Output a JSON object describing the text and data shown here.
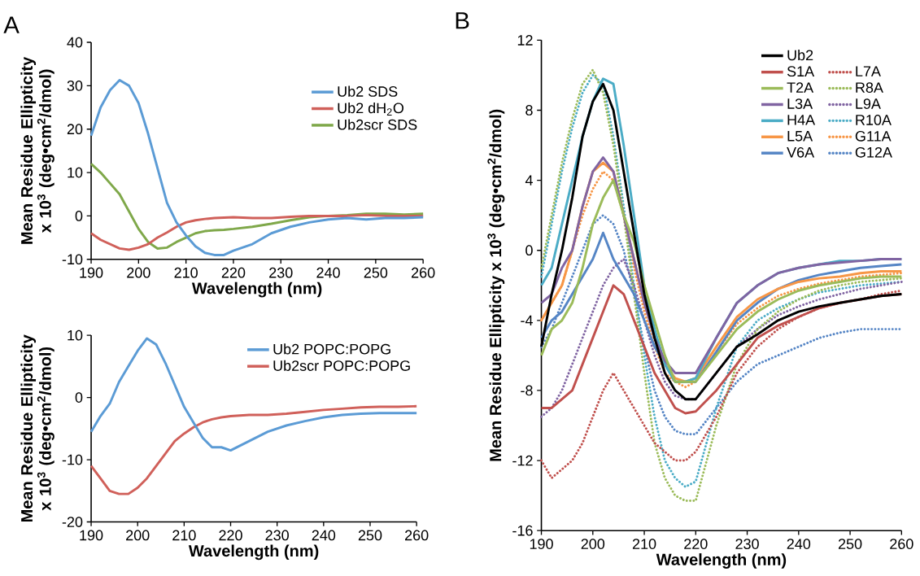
{
  "chart_data": [
    {
      "type": "line",
      "xlabel": "Wavelength (nm)",
      "ylabel": "Mean Residue Ellipticity x 10$^{3}$ (deg•cm$^{2}$/dmol)",
      "annotations": [
        "A"
      ],
      "legend": "top right",
      "xlim": [
        190,
        260
      ],
      "xticks": [
        190,
        200,
        210,
        220,
        230,
        240,
        250,
        260
      ],
      "ylim": [
        -10,
        40
      ],
      "yticks": [
        -10,
        0,
        10,
        20,
        30,
        40
      ],
      "x": [
        190,
        192,
        194,
        196,
        198,
        200,
        202,
        204,
        206,
        208,
        210,
        212,
        214,
        216,
        218,
        220,
        224,
        228,
        232,
        236,
        240,
        244,
        248,
        252,
        256,
        260
      ],
      "series": [
        {
          "name": "Ub2 SDS",
          "color": "#5b9bd5",
          "values": [
            18.5,
            25,
            29,
            31.3,
            30,
            26,
            19,
            11,
            3,
            -1.5,
            -4.5,
            -7,
            -8.5,
            -9,
            -9,
            -8,
            -6.5,
            -4,
            -2.5,
            -1.5,
            -0.8,
            -0.5,
            -0.8,
            -0.5,
            -0.5,
            -0.3
          ]
        },
        {
          "name": "Ub2 dH$_{2}$O",
          "color": "#d0605a",
          "values": [
            -4,
            -5.5,
            -6.5,
            -7.5,
            -7.8,
            -7.3,
            -6.5,
            -5,
            -3.8,
            -2.5,
            -1.5,
            -1,
            -0.7,
            -0.5,
            -0.4,
            -0.3,
            -0.5,
            -0.5,
            -0.2,
            0,
            0,
            0,
            0.2,
            0,
            0,
            0
          ]
        },
        {
          "name": "Ub2scr SDS",
          "color": "#7fa84a",
          "values": [
            12,
            10,
            7.5,
            5,
            1,
            -3,
            -6,
            -7.5,
            -7.3,
            -6,
            -5,
            -4,
            -3.5,
            -3.3,
            -3.2,
            -3,
            -2.5,
            -1.8,
            -1,
            -0.3,
            0,
            0.2,
            0.5,
            0.5,
            0.3,
            0.5
          ]
        }
      ]
    },
    {
      "type": "line",
      "xlabel": "Wavelength (nm)",
      "ylabel": "Mean Residue Ellipticity x 10$^{3}$ (deg•cm$^{2}$/dmol)",
      "legend": "top right",
      "xlim": [
        190,
        260
      ],
      "xticks": [
        190,
        200,
        210,
        220,
        230,
        240,
        250,
        260
      ],
      "ylim": [
        -20,
        10
      ],
      "yticks": [
        -20,
        -10,
        0,
        10
      ],
      "x": [
        190,
        192,
        194,
        196,
        198,
        200,
        202,
        204,
        206,
        208,
        210,
        212,
        214,
        216,
        218,
        220,
        224,
        228,
        232,
        236,
        240,
        244,
        248,
        252,
        256,
        260
      ],
      "series": [
        {
          "name": "Ub2 POPC:POPG",
          "color": "#5b9bd5",
          "values": [
            -5.5,
            -3,
            -1,
            2.5,
            5,
            7.5,
            9.5,
            8.5,
            5.5,
            2,
            -1.5,
            -4,
            -6.5,
            -8,
            -8,
            -8.5,
            -7,
            -5.5,
            -4.5,
            -3.8,
            -3.2,
            -2.8,
            -2.6,
            -2.5,
            -2.5,
            -2.5
          ]
        },
        {
          "name": "Ub2scr POPC:POPG",
          "color": "#d0605a",
          "values": [
            -11,
            -13,
            -15,
            -15.5,
            -15.5,
            -14.5,
            -13,
            -11,
            -9,
            -7,
            -5.8,
            -4.8,
            -4,
            -3.5,
            -3.2,
            -3,
            -2.8,
            -2.8,
            -2.6,
            -2.3,
            -2,
            -1.8,
            -1.6,
            -1.5,
            -1.5,
            -1.4
          ]
        }
      ]
    },
    {
      "type": "line",
      "xlabel": "Wavelength (nm)",
      "ylabel": "Mean Residue Ellipticity x 10$^{3}$ (deg•cm$^{2}$/dmol)",
      "annotations": [
        "B"
      ],
      "legend": "top right",
      "xlim": [
        190,
        260
      ],
      "xticks": [
        190,
        200,
        210,
        220,
        230,
        240,
        250,
        260
      ],
      "ylim": [
        -16,
        12
      ],
      "yticks": [
        -16,
        -12,
        -8,
        -4,
        0,
        4,
        8,
        12
      ],
      "x": [
        190,
        192,
        194,
        196,
        198,
        200,
        202,
        204,
        206,
        208,
        210,
        212,
        214,
        216,
        218,
        220,
        224,
        228,
        232,
        236,
        240,
        244,
        248,
        252,
        256,
        260
      ],
      "series": [
        {
          "name": "Ub2",
          "color": "#000000",
          "values": [
            -5.5,
            -2.5,
            0,
            3,
            6.5,
            8.5,
            9.5,
            8,
            4.5,
            1,
            -2.5,
            -5,
            -7,
            -8,
            -8.5,
            -8.5,
            -7,
            -5.5,
            -4.8,
            -4,
            -3.5,
            -3.2,
            -3,
            -2.8,
            -2.6,
            -2.5
          ]
        },
        {
          "name": "S1A",
          "color": "#c0504d",
          "values": [
            -9,
            -9,
            -8.5,
            -8,
            -6.5,
            -5,
            -3.5,
            -2,
            -2.5,
            -4,
            -5.5,
            -7,
            -8,
            -9,
            -9.3,
            -9.2,
            -8,
            -6.5,
            -5,
            -4.3,
            -3.8,
            -3.3,
            -3,
            -2.8,
            -2.6,
            -2.5
          ]
        },
        {
          "name": "T2A",
          "color": "#9bbb59",
          "values": [
            -6,
            -4.5,
            -4,
            -3,
            -1,
            1.5,
            3,
            4,
            2,
            0.5,
            -2,
            -4,
            -6,
            -7.5,
            -7.5,
            -7.5,
            -6,
            -4.5,
            -3.5,
            -2.8,
            -2.3,
            -2,
            -1.8,
            -1.6,
            -1.5,
            -1.5
          ]
        },
        {
          "name": "L3A",
          "color": "#8064a2",
          "values": [
            -3,
            -2.5,
            -1,
            0,
            2.5,
            4.5,
            5.3,
            4.5,
            2,
            -0.5,
            -3,
            -5,
            -6.3,
            -7,
            -7,
            -7,
            -5,
            -3,
            -2,
            -1.3,
            -1,
            -0.8,
            -0.7,
            -0.6,
            -0.5,
            -0.5
          ]
        },
        {
          "name": "H4A",
          "color": "#4bacc6",
          "values": [
            -2,
            -1,
            1.5,
            4,
            6.5,
            8.5,
            9.8,
            9.5,
            6,
            2,
            -2,
            -4.5,
            -6.5,
            -7.5,
            -7.5,
            -7.3,
            -5,
            -3,
            -2,
            -1.3,
            -1,
            -0.8,
            -0.6,
            -0.6,
            -0.5,
            -0.5
          ]
        },
        {
          "name": "L5A",
          "color": "#f79646",
          "values": [
            -4,
            -3,
            -2,
            0,
            2.5,
            4.5,
            5,
            4.5,
            2,
            -0.5,
            -3,
            -5,
            -6.5,
            -7.3,
            -7.5,
            -7.3,
            -5.5,
            -3.8,
            -2.8,
            -2.2,
            -1.8,
            -1.6,
            -1.5,
            -1.3,
            -1.2,
            -1.2
          ]
        },
        {
          "name": "V6A",
          "color": "#5585c5",
          "values": [
            -5,
            -4,
            -3.5,
            -2.5,
            -1.5,
            -0.5,
            1,
            -0.5,
            -1.5,
            -2.5,
            -4,
            -5.5,
            -6.5,
            -7.5,
            -7.5,
            -7.5,
            -5.8,
            -4,
            -3,
            -2.2,
            -1.7,
            -1.4,
            -1.2,
            -1,
            -0.9,
            -0.8
          ]
        },
        {
          "name": "L7A",
          "color": "#c0504d",
          "line_style": "dotted",
          "values": [
            -12,
            -13,
            -12.5,
            -12,
            -11,
            -9.5,
            -8,
            -7,
            -8,
            -9,
            -10,
            -11,
            -11.5,
            -12,
            -12,
            -11.5,
            -9.5,
            -7,
            -5.5,
            -4.5,
            -3.8,
            -3.3,
            -3,
            -2.8,
            -2.5,
            -2.3
          ]
        },
        {
          "name": "R8A",
          "color": "#9bbb59",
          "line_style": "dotted",
          "values": [
            -1,
            2,
            5,
            7.5,
            9.5,
            10.3,
            9,
            6,
            2,
            -2.5,
            -7,
            -11,
            -13,
            -14,
            -14.3,
            -14.3,
            -10,
            -6.5,
            -4.5,
            -3.5,
            -2.8,
            -2.3,
            -2,
            -1.8,
            -1.7,
            -1.6
          ]
        },
        {
          "name": "L9A",
          "color": "#8064a2",
          "line_style": "dotted",
          "values": [
            -9.5,
            -9,
            -8,
            -6.5,
            -5,
            -3.5,
            -2,
            -1,
            -0.5,
            -2,
            -4,
            -6,
            -7.5,
            -8.3,
            -8.5,
            -8.5,
            -7,
            -5.5,
            -4.5,
            -3.7,
            -3.2,
            -2.8,
            -2.5,
            -2.2,
            -2,
            -1.8
          ]
        },
        {
          "name": "R10A",
          "color": "#4bacc6",
          "line_style": "dotted",
          "values": [
            -1.5,
            1.5,
            4.5,
            7,
            9,
            10,
            9.5,
            6.5,
            2.5,
            -2,
            -6,
            -9.5,
            -12,
            -13,
            -13.5,
            -13.2,
            -9,
            -5.5,
            -4,
            -3.3,
            -2.8,
            -2.4,
            -2.2,
            -2,
            -1.9,
            -1.8
          ]
        },
        {
          "name": "G11A",
          "color": "#f79646",
          "line_style": "dotted",
          "values": [
            -4,
            -3,
            -2,
            0,
            2,
            3.5,
            4.5,
            4,
            2,
            -1,
            -3.5,
            -5.5,
            -7,
            -7.5,
            -7.8,
            -7.5,
            -5.8,
            -4.2,
            -3.3,
            -2.6,
            -2.2,
            -1.9,
            -1.7,
            -1.5,
            -1.4,
            -1.3
          ]
        },
        {
          "name": "G12A",
          "color": "#5585c5",
          "line_style": "dotted",
          "values": [
            -5.5,
            -4.5,
            -3,
            -1.5,
            0,
            1.5,
            2,
            1.5,
            0,
            -2.5,
            -5.5,
            -8,
            -9.5,
            -10.3,
            -10.5,
            -10.5,
            -9,
            -7.5,
            -6.5,
            -6,
            -5.5,
            -5,
            -4.7,
            -4.5,
            -4.5,
            -4.5
          ]
        }
      ]
    }
  ]
}
